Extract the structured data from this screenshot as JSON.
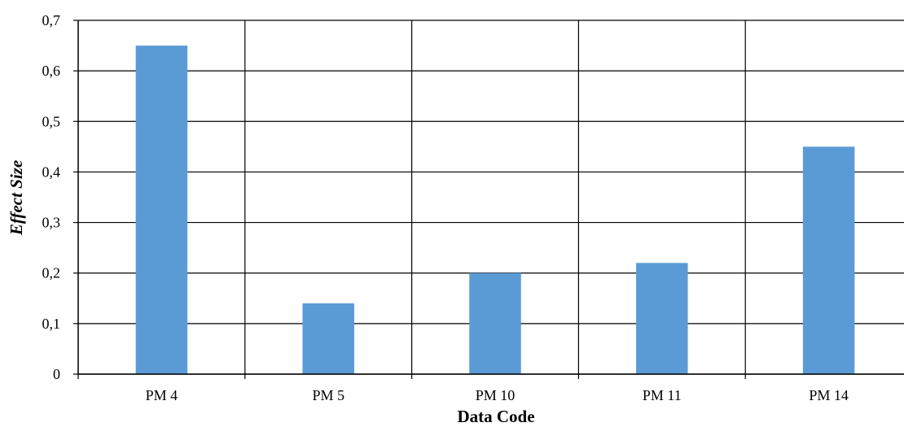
{
  "chart_data": {
    "type": "bar",
    "title": "",
    "xlabel": "Data Code",
    "ylabel": "Effect Size",
    "categories": [
      "PM 4",
      "PM 5",
      "PM 10",
      "PM 11",
      "PM 14"
    ],
    "values": [
      0.65,
      0.14,
      0.2,
      0.22,
      0.45
    ],
    "ylim": [
      0,
      0.7
    ],
    "y_ticks": [
      0,
      0.1,
      0.2,
      0.3,
      0.4,
      0.5,
      0.6,
      0.7
    ],
    "y_tick_labels": [
      "0",
      "0,1",
      "0,2",
      "0,3",
      "0,4",
      "0,5",
      "0,6",
      "0,7"
    ],
    "grid": true,
    "legend": "none",
    "bar_color": "#5b9bd5",
    "grid_color": "#000000"
  }
}
